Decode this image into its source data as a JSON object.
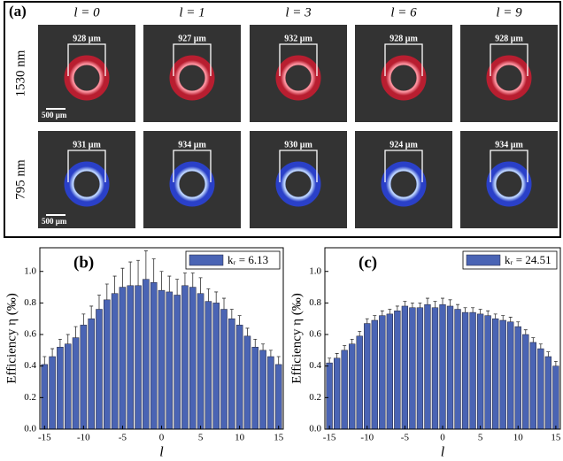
{
  "panel_a": {
    "label": "(a)",
    "columns": [
      "l = 0",
      "l = 1",
      "l = 3",
      "l = 6",
      "l = 9"
    ],
    "rows": [
      {
        "label": "1530 nm",
        "scale_bar": "500 µm",
        "measurements": [
          "928 µm",
          "927 µm",
          "932 µm",
          "928 µm",
          "928 µm"
        ]
      },
      {
        "label": "795 nm",
        "scale_bar": "500 µm",
        "measurements": [
          "931 µm",
          "934 µm",
          "930 µm",
          "924 µm",
          "934 µm"
        ]
      }
    ]
  },
  "chart_data": [
    {
      "type": "bar",
      "title": "(b)",
      "xlabel": "l",
      "ylabel": "Efficiency η (‰)",
      "x": [
        -15,
        -14,
        -13,
        -12,
        -11,
        -10,
        -9,
        -8,
        -7,
        -6,
        -5,
        -4,
        -3,
        -2,
        -1,
        0,
        1,
        2,
        3,
        4,
        5,
        6,
        7,
        8,
        9,
        10,
        11,
        12,
        13,
        14,
        15
      ],
      "series": [
        {
          "name": "kᵣ = 6.13",
          "color": "#4a64b4",
          "values": [
            0.41,
            0.46,
            0.52,
            0.54,
            0.58,
            0.66,
            0.7,
            0.76,
            0.82,
            0.86,
            0.9,
            0.91,
            0.91,
            0.95,
            0.93,
            0.88,
            0.87,
            0.85,
            0.91,
            0.9,
            0.86,
            0.81,
            0.8,
            0.76,
            0.7,
            0.66,
            0.59,
            0.52,
            0.5,
            0.46,
            0.41
          ],
          "errors": [
            0.05,
            0.05,
            0.05,
            0.06,
            0.07,
            0.07,
            0.08,
            0.09,
            0.1,
            0.11,
            0.12,
            0.15,
            0.16,
            0.18,
            0.15,
            0.12,
            0.1,
            0.1,
            0.08,
            0.09,
            0.1,
            0.08,
            0.07,
            0.07,
            0.06,
            0.06,
            0.05,
            0.05,
            0.04,
            0.04,
            0.05
          ]
        }
      ],
      "xlim": [
        -15.6,
        15.6
      ],
      "xticks": [
        -15,
        -10,
        -5,
        0,
        5,
        10,
        15
      ],
      "ylim": [
        0,
        1.15
      ],
      "yticks": [
        {
          "value": 0,
          "label": "0.0"
        },
        {
          "value": 0.2,
          "label": "0.2"
        },
        {
          "value": 0.4,
          "label": "0.4"
        },
        {
          "value": 0.6,
          "label": "0.6"
        },
        {
          "value": 0.8,
          "label": "0.8"
        },
        {
          "value": 1,
          "label": "1.0"
        }
      ],
      "legend": "upper right"
    },
    {
      "type": "bar",
      "title": "(c)",
      "xlabel": "l",
      "ylabel": "Efficiency η (‰)",
      "x": [
        -15,
        -14,
        -13,
        -12,
        -11,
        -10,
        -9,
        -8,
        -7,
        -6,
        -5,
        -4,
        -3,
        -2,
        -1,
        0,
        1,
        2,
        3,
        4,
        5,
        6,
        7,
        8,
        9,
        10,
        11,
        12,
        13,
        14,
        15
      ],
      "series": [
        {
          "name": "kᵣ = 24.51",
          "color": "#4a64b4",
          "values": [
            0.42,
            0.45,
            0.5,
            0.54,
            0.59,
            0.67,
            0.69,
            0.72,
            0.73,
            0.75,
            0.78,
            0.77,
            0.77,
            0.79,
            0.77,
            0.79,
            0.78,
            0.76,
            0.74,
            0.74,
            0.73,
            0.72,
            0.7,
            0.69,
            0.68,
            0.65,
            0.6,
            0.55,
            0.51,
            0.46,
            0.4
          ],
          "errors": [
            0.03,
            0.03,
            0.03,
            0.03,
            0.03,
            0.03,
            0.03,
            0.03,
            0.03,
            0.03,
            0.03,
            0.03,
            0.03,
            0.04,
            0.04,
            0.04,
            0.04,
            0.03,
            0.03,
            0.03,
            0.03,
            0.03,
            0.03,
            0.03,
            0.03,
            0.03,
            0.03,
            0.03,
            0.03,
            0.03,
            0.03
          ]
        }
      ],
      "xlim": [
        -15.6,
        15.6
      ],
      "xticks": [
        -15,
        -10,
        -5,
        0,
        5,
        10,
        15
      ],
      "ylim": [
        0,
        1.15
      ],
      "yticks": [
        {
          "value": 0,
          "label": "0.0"
        },
        {
          "value": 0.2,
          "label": "0.2"
        },
        {
          "value": 0.4,
          "label": "0.4"
        },
        {
          "value": 0.6,
          "label": "0.6"
        },
        {
          "value": 0.8,
          "label": "0.8"
        },
        {
          "value": 1,
          "label": "1.0"
        }
      ],
      "legend": "upper right"
    }
  ]
}
